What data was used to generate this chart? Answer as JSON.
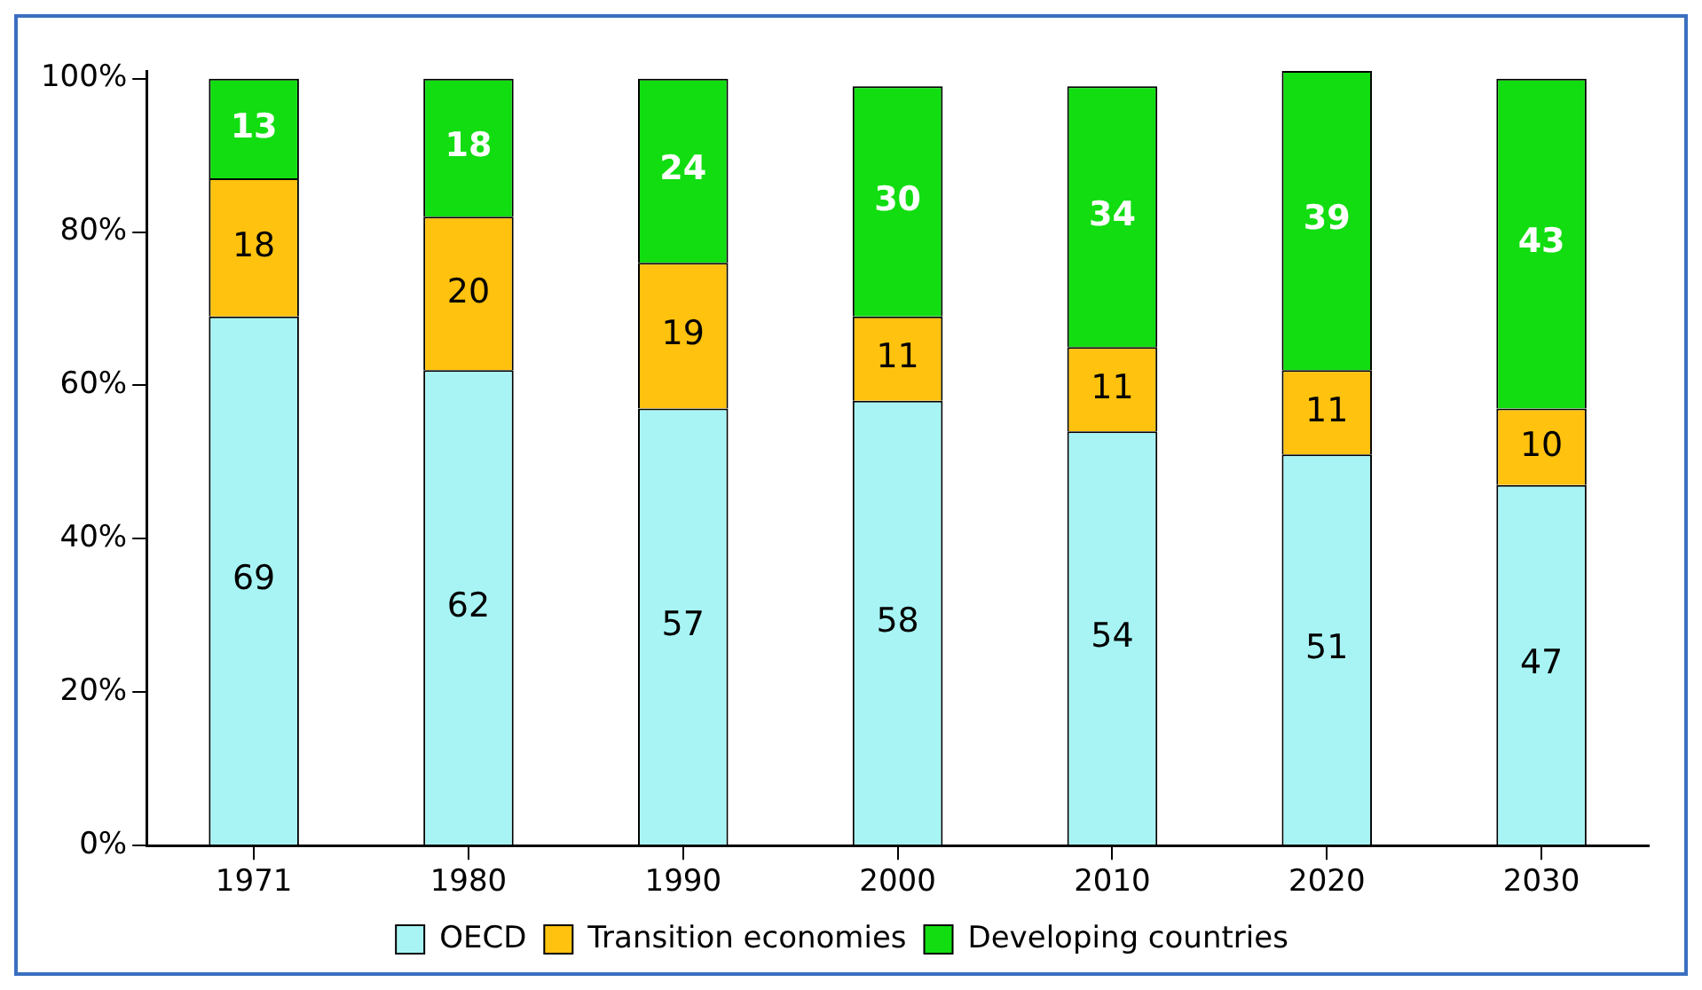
{
  "chart_data": {
    "type": "bar",
    "stacked": true,
    "categories": [
      "1971",
      "1980",
      "1990",
      "2000",
      "2010",
      "2020",
      "2030"
    ],
    "series": [
      {
        "name": "OECD",
        "color": "#a8f4f4",
        "values": [
          69,
          62,
          57,
          58,
          54,
          51,
          47
        ]
      },
      {
        "name": "Transition economies",
        "color": "#ffc20e",
        "values": [
          18,
          20,
          19,
          11,
          11,
          11,
          10
        ]
      },
      {
        "name": "Developing countries",
        "color": "#11dd11",
        "values": [
          13,
          18,
          24,
          30,
          34,
          39,
          43
        ]
      }
    ],
    "ylim": [
      0,
      101
    ],
    "yticks": [
      {
        "value": 0,
        "label": "0%"
      },
      {
        "value": 20,
        "label": "20%"
      },
      {
        "value": 40,
        "label": "40%"
      },
      {
        "value": 60,
        "label": "60%"
      },
      {
        "value": 80,
        "label": "80%"
      },
      {
        "value": 100,
        "label": "100%"
      }
    ],
    "grid": false,
    "legend": "bottom",
    "data_labels": true
  }
}
